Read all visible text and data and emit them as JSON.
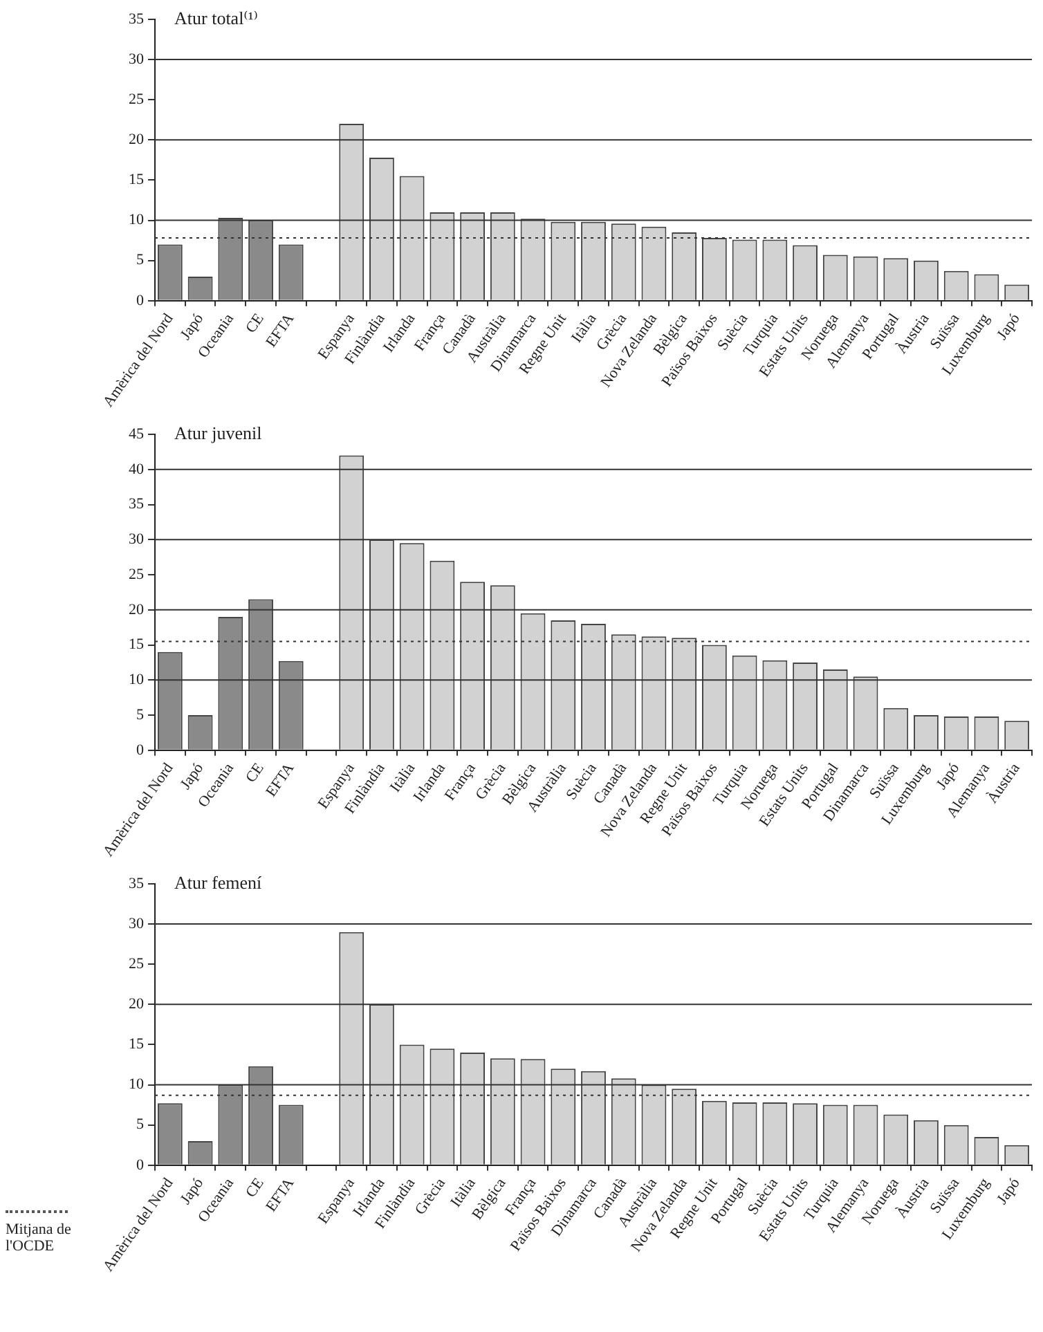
{
  "chart_data": [
    {
      "type": "bar",
      "title": "Atur total⁽¹⁾",
      "categories": [
        "Amèrica del Nord",
        "Japó",
        "Oceania",
        "CE",
        "EFTA",
        null,
        "Espanya",
        "Finlàndia",
        "Irlanda",
        "França",
        "Canadà",
        "Austràlia",
        "Dinamarca",
        "Regne Unit",
        "Itàlia",
        "Grècia",
        "Nova Zelanda",
        "Bèlgica",
        "Països Baixos",
        "Suècia",
        "Turquia",
        "Estats Units",
        "Noruega",
        "Alemanya",
        "Portugal",
        "Àustria",
        "Suïssa",
        "Luxemburg",
        "Japó"
      ],
      "values": [
        7,
        3,
        10.3,
        10,
        7,
        null,
        22,
        17.8,
        15.5,
        11,
        11,
        11,
        10.2,
        9.8,
        9.8,
        9.6,
        9.2,
        8.5,
        7.8,
        7.6,
        7.6,
        6.9,
        5.7,
        5.5,
        5.3,
        5,
        3.7,
        3.3,
        2
      ],
      "colors": [
        "#8a8a8a",
        "#8a8a8a",
        "#8a8a8a",
        "#8a8a8a",
        "#8a8a8a",
        null,
        "#d2d2d2",
        "#d2d2d2",
        "#d2d2d2",
        "#d2d2d2",
        "#d2d2d2",
        "#d2d2d2",
        "#d2d2d2",
        "#d2d2d2",
        "#d2d2d2",
        "#d2d2d2",
        "#d2d2d2",
        "#d2d2d2",
        "#d2d2d2",
        "#d2d2d2",
        "#d2d2d2",
        "#d2d2d2",
        "#d2d2d2",
        "#d2d2d2",
        "#d2d2d2",
        "#d2d2d2",
        "#d2d2d2",
        "#d2d2d2",
        "#d2d2d2"
      ],
      "ylim": [
        0,
        35
      ],
      "yticks": [
        0,
        5,
        10,
        15,
        20,
        25,
        30,
        35
      ],
      "ref_lines": [
        {
          "axis": "y",
          "value": 10,
          "line_style": "solid"
        },
        {
          "axis": "y",
          "value": 20,
          "line_style": "solid"
        },
        {
          "axis": "y",
          "value": 30,
          "line_style": "solid"
        },
        {
          "axis": "y",
          "value": 7.8,
          "line_style": "dotted"
        }
      ]
    },
    {
      "type": "bar",
      "title": "Atur juvenil",
      "categories": [
        "Amèrica del Nord",
        "Japó",
        "Oceania",
        "CE",
        "EFTA",
        null,
        "Espanya",
        "Finlàndia",
        "Itàlia",
        "Irlanda",
        "França",
        "Grècia",
        "Bèlgica",
        "Austràlia",
        "Suècia",
        "Canadà",
        "Nova Zelanda",
        "Regne Unit",
        "Països Baixos",
        "Turquia",
        "Noruega",
        "Estats Units",
        "Portugal",
        "Dinamarca",
        "Suïssa",
        "Luxemburg",
        "Japó",
        "Alemanya",
        "Àustria"
      ],
      "values": [
        14,
        5,
        19,
        21.5,
        12.7,
        null,
        42,
        30,
        29.5,
        27,
        24,
        23.5,
        19.5,
        18.5,
        18,
        16.5,
        16.2,
        16,
        15,
        13.5,
        12.8,
        12.5,
        11.5,
        10.5,
        6,
        5,
        4.8,
        4.8,
        4.2
      ],
      "colors": [
        "#8a8a8a",
        "#8a8a8a",
        "#8a8a8a",
        "#8a8a8a",
        "#8a8a8a",
        null,
        "#d2d2d2",
        "#d2d2d2",
        "#d2d2d2",
        "#d2d2d2",
        "#d2d2d2",
        "#d2d2d2",
        "#d2d2d2",
        "#d2d2d2",
        "#d2d2d2",
        "#d2d2d2",
        "#d2d2d2",
        "#d2d2d2",
        "#d2d2d2",
        "#d2d2d2",
        "#d2d2d2",
        "#d2d2d2",
        "#d2d2d2",
        "#d2d2d2",
        "#d2d2d2",
        "#d2d2d2",
        "#d2d2d2",
        "#d2d2d2",
        "#d2d2d2"
      ],
      "ylim": [
        0,
        45
      ],
      "yticks": [
        0,
        5,
        10,
        15,
        20,
        25,
        30,
        35,
        40,
        45
      ],
      "ref_lines": [
        {
          "axis": "y",
          "value": 10,
          "line_style": "solid"
        },
        {
          "axis": "y",
          "value": 20,
          "line_style": "solid"
        },
        {
          "axis": "y",
          "value": 30,
          "line_style": "solid"
        },
        {
          "axis": "y",
          "value": 40,
          "line_style": "solid"
        },
        {
          "axis": "y",
          "value": 15.5,
          "line_style": "dotted"
        }
      ]
    },
    {
      "type": "bar",
      "title": "Atur femení",
      "categories": [
        "Amèrica del Nord",
        "Japó",
        "Oceania",
        "CE",
        "EFTA",
        null,
        "Espanya",
        "Irlanda",
        "Finlàndia",
        "Grècia",
        "Itàlia",
        "Bèlgica",
        "França",
        "Països Baixos",
        "Dinamarca",
        "Canadà",
        "Austràlia",
        "Nova Zelanda",
        "Regne Unit",
        "Portugal",
        "Suècia",
        "Estats Units",
        "Turquia",
        "Alemanya",
        "Noruega",
        "Àustria",
        "Suïssa",
        "Luxemburg",
        "Japó"
      ],
      "values": [
        7.7,
        3,
        10,
        12.3,
        7.5,
        null,
        29,
        20,
        15,
        14.5,
        14,
        13.3,
        13.2,
        12,
        11.7,
        10.8,
        10,
        9.5,
        8,
        7.8,
        7.8,
        7.7,
        7.5,
        7.5,
        6.3,
        5.6,
        5,
        3.5,
        2.5
      ],
      "colors": [
        "#8a8a8a",
        "#8a8a8a",
        "#8a8a8a",
        "#8a8a8a",
        "#8a8a8a",
        null,
        "#d2d2d2",
        "#d2d2d2",
        "#d2d2d2",
        "#d2d2d2",
        "#d2d2d2",
        "#d2d2d2",
        "#d2d2d2",
        "#d2d2d2",
        "#d2d2d2",
        "#d2d2d2",
        "#d2d2d2",
        "#d2d2d2",
        "#d2d2d2",
        "#d2d2d2",
        "#d2d2d2",
        "#d2d2d2",
        "#d2d2d2",
        "#d2d2d2",
        "#d2d2d2",
        "#d2d2d2",
        "#d2d2d2",
        "#d2d2d2",
        "#d2d2d2"
      ],
      "ylim": [
        0,
        35
      ],
      "yticks": [
        0,
        5,
        10,
        15,
        20,
        25,
        30,
        35
      ],
      "ref_lines": [
        {
          "axis": "y",
          "value": 10,
          "line_style": "solid"
        },
        {
          "axis": "y",
          "value": 20,
          "line_style": "solid"
        },
        {
          "axis": "y",
          "value": 30,
          "line_style": "solid"
        },
        {
          "axis": "y",
          "value": 8.7,
          "line_style": "dotted",
          "label": "Mitjana de l'OCDE"
        }
      ]
    }
  ]
}
